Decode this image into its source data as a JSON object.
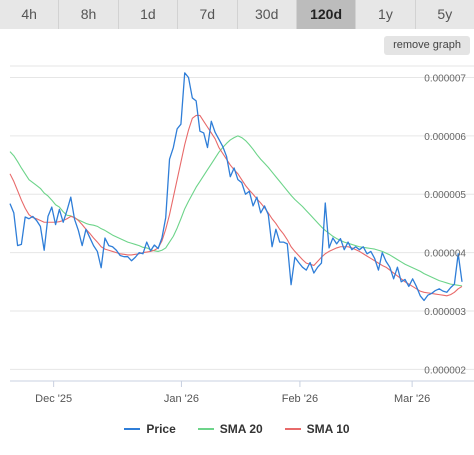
{
  "tabs": [
    {
      "label": "4h",
      "active": false
    },
    {
      "label": "8h",
      "active": false
    },
    {
      "label": "1d",
      "active": false
    },
    {
      "label": "7d",
      "active": false
    },
    {
      "label": "30d",
      "active": false
    },
    {
      "label": "120d",
      "active": true
    },
    {
      "label": "1y",
      "active": false
    },
    {
      "label": "5y",
      "active": false
    }
  ],
  "remove_graph_label": "remove graph",
  "colors": {
    "price": "#2f7ed8",
    "sma20": "#6dd48a",
    "sma10": "#e86a6a",
    "grid": "#e6e6e6"
  },
  "chart_data": {
    "type": "line",
    "ylim": [
      1.8e-06,
      7.3e-06
    ],
    "xlim": [
      0,
      119
    ],
    "y_ticks": [
      "0.000002",
      "0.000003",
      "0.000004",
      "0.000005",
      "0.000006",
      "0.000007"
    ],
    "y_tick_values": [
      2e-06,
      3e-06,
      4e-06,
      5e-06,
      6e-06,
      7e-06
    ],
    "x_ticks": [
      "Dec '25",
      "Jan '26",
      "Feb '26",
      "Mar '26"
    ],
    "x_tick_positions": [
      14,
      55,
      93,
      129
    ],
    "legend_position": "bottom",
    "series": [
      {
        "name": "Price",
        "values": [
          4.84e-06,
          4.68e-06,
          4.12e-06,
          4.14e-06,
          4.61e-06,
          4.58e-06,
          4.62e-06,
          4.55e-06,
          4.45e-06,
          4.04e-06,
          4.62e-06,
          4.78e-06,
          4.48e-06,
          4.74e-06,
          4.52e-06,
          4.72e-06,
          4.95e-06,
          4.57e-06,
          4.38e-06,
          4.12e-06,
          4.4e-06,
          4.26e-06,
          4.12e-06,
          4.02e-06,
          3.74e-06,
          4.25e-06,
          4.12e-06,
          4.1e-06,
          4.04e-06,
          3.95e-06,
          3.93e-06,
          3.93e-06,
          3.86e-06,
          3.92e-06,
          4e-06,
          3.98e-06,
          4.18e-06,
          4.03e-06,
          4.13e-06,
          4.07e-06,
          4.25e-06,
          4.6e-06,
          5.6e-06,
          5.8e-06,
          6.12e-06,
          6.2e-06,
          7.08e-06,
          7e-06,
          6.65e-06,
          6.6e-06,
          6.08e-06,
          6.05e-06,
          5.8e-06,
          6.25e-06,
          6.06e-06,
          5.94e-06,
          5.82e-06,
          5.65e-06,
          5.3e-06,
          5.45e-06,
          5.25e-06,
          5.2e-06,
          5e-06,
          5.05e-06,
          4.8e-06,
          4.95e-06,
          4.68e-06,
          4.8e-06,
          4.65e-06,
          4.1e-06,
          4.4e-06,
          4.18e-06,
          4.18e-06,
          4.15e-06,
          3.45e-06,
          3.92e-06,
          3.83e-06,
          3.75e-06,
          3.7e-06,
          3.83e-06,
          3.65e-06,
          3.75e-06,
          3.82e-06,
          4.85e-06,
          4.08e-06,
          4.25e-06,
          4.15e-06,
          4.24e-06,
          4.05e-06,
          4.18e-06,
          4.05e-06,
          4.1e-06,
          4.05e-06,
          4.1e-06,
          3.98e-06,
          4.02e-06,
          3.9e-06,
          3.7e-06,
          4e-06,
          3.85e-06,
          3.75e-06,
          3.55e-06,
          3.75e-06,
          3.5e-06,
          3.54e-06,
          3.42e-06,
          3.55e-06,
          3.42e-06,
          3.26e-06,
          3.18e-06,
          3.27e-06,
          3.3e-06,
          3.35e-06,
          3.38e-06,
          3.34e-06,
          3.32e-06,
          3.4e-06,
          3.46e-06,
          3.98e-06,
          3.5e-06
        ]
      },
      {
        "name": "SMA 20",
        "values": [
          5.73e-06,
          5.66e-06,
          5.56e-06,
          5.45e-06,
          5.35e-06,
          5.25e-06,
          5.2e-06,
          5.15e-06,
          5.1e-06,
          5.02e-06,
          4.97e-06,
          4.9e-06,
          4.82e-06,
          4.78e-06,
          4.7e-06,
          4.64e-06,
          4.63e-06,
          4.6e-06,
          4.56e-06,
          4.53e-06,
          4.5e-06,
          4.48e-06,
          4.47e-06,
          4.45e-06,
          4.41e-06,
          4.38e-06,
          4.34e-06,
          4.3e-06,
          4.27e-06,
          4.24e-06,
          4.21e-06,
          4.18e-06,
          4.16e-06,
          4.14e-06,
          4.12e-06,
          4.09e-06,
          4.08e-06,
          4.05e-06,
          4.03e-06,
          4.02e-06,
          4.04e-06,
          4.08e-06,
          4.18e-06,
          4.28e-06,
          4.42e-06,
          4.58e-06,
          4.75e-06,
          4.88e-06,
          5e-06,
          5.12e-06,
          5.22e-06,
          5.32e-06,
          5.42e-06,
          5.52e-06,
          5.62e-06,
          5.72e-06,
          5.8e-06,
          5.87e-06,
          5.93e-06,
          5.97e-06,
          6e-06,
          5.97e-06,
          5.92e-06,
          5.85e-06,
          5.77e-06,
          5.68e-06,
          5.6e-06,
          5.53e-06,
          5.46e-06,
          5.38e-06,
          5.3e-06,
          5.22e-06,
          5.14e-06,
          5.06e-06,
          4.98e-06,
          4.91e-06,
          4.85e-06,
          4.79e-06,
          4.72e-06,
          4.65e-06,
          4.58e-06,
          4.51e-06,
          4.44e-06,
          4.38e-06,
          4.33e-06,
          4.28e-06,
          4.24e-06,
          4.21e-06,
          4.18e-06,
          4.16e-06,
          4.14e-06,
          4.12e-06,
          4.1e-06,
          4.09e-06,
          4.08e-06,
          4.07e-06,
          4.06e-06,
          4.04e-06,
          4.02e-06,
          3.99e-06,
          3.96e-06,
          3.92e-06,
          3.88e-06,
          3.84e-06,
          3.8e-06,
          3.77e-06,
          3.74e-06,
          3.71e-06,
          3.68e-06,
          3.64e-06,
          3.61e-06,
          3.58e-06,
          3.55e-06,
          3.52e-06,
          3.5e-06,
          3.48e-06,
          3.46e-06,
          3.45e-06,
          3.44e-06,
          3.43e-06
        ]
      },
      {
        "name": "SMA 10",
        "values": [
          5.35e-06,
          5.22e-06,
          5.06e-06,
          4.9e-06,
          4.76e-06,
          4.65e-06,
          4.6e-06,
          4.58e-06,
          4.55e-06,
          4.52e-06,
          4.52e-06,
          4.52e-06,
          4.52e-06,
          4.53e-06,
          4.55e-06,
          4.58e-06,
          4.62e-06,
          4.6e-06,
          4.55e-06,
          4.48e-06,
          4.4e-06,
          4.33e-06,
          4.25e-06,
          4.18e-06,
          4.1e-06,
          4.06e-06,
          4.04e-06,
          4.02e-06,
          4e-06,
          3.98e-06,
          3.97e-06,
          3.96e-06,
          3.96e-06,
          3.97e-06,
          3.98e-06,
          4e-06,
          4.01e-06,
          4.02e-06,
          4.04e-06,
          4.08e-06,
          4.2e-06,
          4.4e-06,
          4.65e-06,
          4.95e-06,
          5.25e-06,
          5.55e-06,
          5.85e-06,
          6.1e-06,
          6.3e-06,
          6.35e-06,
          6.35e-06,
          6.25e-06,
          6.15e-06,
          6.05e-06,
          5.95e-06,
          5.8e-06,
          5.7e-06,
          5.6e-06,
          5.5e-06,
          5.42e-06,
          5.35e-06,
          5.25e-06,
          5.15e-06,
          5.07e-06,
          5e-06,
          4.92e-06,
          4.85e-06,
          4.77e-06,
          4.68e-06,
          4.58e-06,
          4.5e-06,
          4.4e-06,
          4.32e-06,
          4.22e-06,
          4.1e-06,
          4.02e-06,
          3.95e-06,
          3.88e-06,
          3.82e-06,
          3.8e-06,
          3.78e-06,
          3.85e-06,
          3.92e-06,
          3.98e-06,
          4.02e-06,
          4.05e-06,
          4.08e-06,
          4.1e-06,
          4.1e-06,
          4.1e-06,
          4.08e-06,
          4.05e-06,
          4.02e-06,
          3.98e-06,
          3.94e-06,
          3.9e-06,
          3.86e-06,
          3.82e-06,
          3.78e-06,
          3.75e-06,
          3.7e-06,
          3.65e-06,
          3.6e-06,
          3.55e-06,
          3.5e-06,
          3.46e-06,
          3.42e-06,
          3.38e-06,
          3.34e-06,
          3.32e-06,
          3.31e-06,
          3.3e-06,
          3.29e-06,
          3.28e-06,
          3.27e-06,
          3.26e-06,
          3.28e-06,
          3.32e-06,
          3.38e-06,
          3.42e-06
        ]
      }
    ]
  }
}
